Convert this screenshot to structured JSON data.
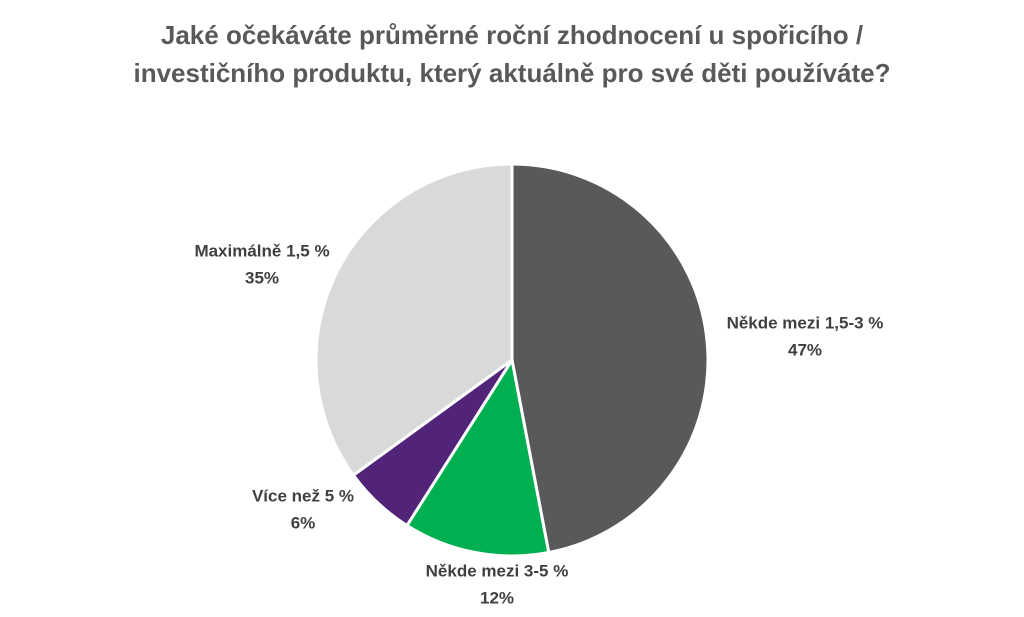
{
  "chart_data": {
    "type": "pie",
    "title": "Jaké očekáváte průměrné roční zhodnocení u spořicího / investičního produktu, který aktuálně pro své děti používáte?",
    "categories": [
      "Někde mezi 1,5-3 %",
      "Někde mezi 3-5 %",
      "Více než 5 %",
      "Maximálně 1,5 %"
    ],
    "values": [
      47,
      12,
      6,
      35
    ],
    "value_labels": [
      "47%",
      "12%",
      "6%",
      "35%"
    ],
    "colors": [
      "#595959",
      "#00b050",
      "#512479",
      "#d9d9d9"
    ]
  }
}
